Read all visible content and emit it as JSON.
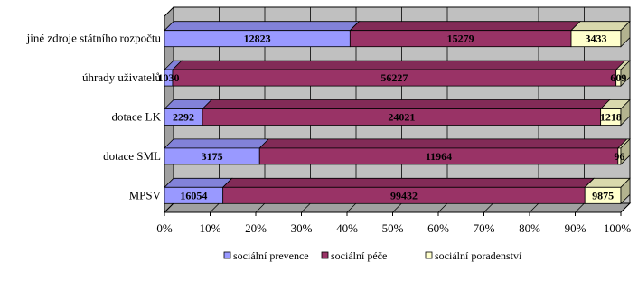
{
  "chart_data": {
    "type": "bar",
    "orientation": "horizontal",
    "stacking": "percent",
    "style": "3d",
    "categories": [
      "jiné zdroje státního rozpočtu",
      "úhrady uživatelů",
      "dotace LK",
      "dotace SML",
      "MPSV"
    ],
    "series": [
      {
        "name": "sociální prevence",
        "values": [
          12823,
          1030,
          2292,
          3175,
          16054
        ],
        "color": "#9999ff"
      },
      {
        "name": "sociální péče",
        "values": [
          15279,
          56227,
          24021,
          11964,
          99432
        ],
        "color": "#993366"
      },
      {
        "name": "sociální poradenství",
        "values": [
          3433,
          609,
          1218,
          96,
          9875
        ],
        "color": "#ffffcc"
      }
    ],
    "data_labels": [
      [
        "12823",
        "1030",
        "2292",
        "3175",
        "16054"
      ],
      [
        "15279",
        "56227",
        "24021",
        "11964",
        "99432"
      ],
      [
        "3433",
        "609",
        "1218",
        "96",
        "9875"
      ]
    ],
    "x_ticks": [
      "0%",
      "10%",
      "20%",
      "30%",
      "40%",
      "50%",
      "60%",
      "70%",
      "80%",
      "90%",
      "100%"
    ],
    "xlim": [
      0,
      100
    ],
    "grid": true,
    "legend_position": "bottom",
    "wall_color": "#c0c0c0"
  }
}
